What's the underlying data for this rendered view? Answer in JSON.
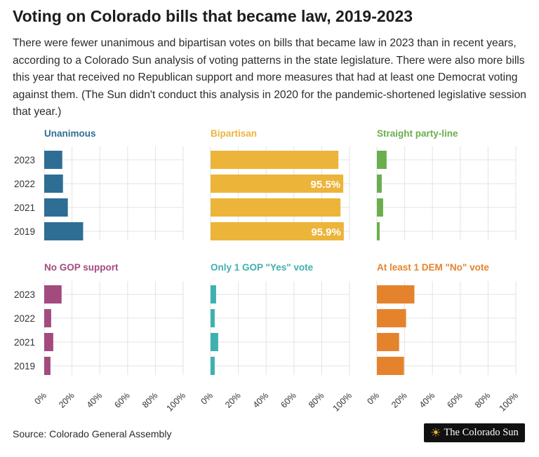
{
  "title": "Voting on Colorado bills that became law, 2019-2023",
  "subtitle": "There were fewer unanimous and bipartisan votes on bills that became law in 2023 than in recent years, according to a Colorado Sun analysis of voting patterns in the state legislature. There were also more bills this year that received no Republican support and more measures that had at least one Democrat voting against them. (The Sun didn't conduct this analysis in 2020 for the pandemic-shortened legislative session that year.)",
  "source": "Source: Colorado General Assembly",
  "logo": {
    "text": "The Colorado Sun",
    "icon": "sun-icon"
  },
  "colors": {
    "unanimous": "#2f6e94",
    "bipartisan": "#edb43a",
    "party_line": "#6aae4e",
    "no_gop": "#a34a7e",
    "one_gop": "#3fb0b0",
    "dem_no": "#e5832d",
    "grid": "#e3e3e3",
    "axis_text": "#333333"
  },
  "chart_data": [
    {
      "type": "bar",
      "orientation": "horizontal",
      "title": "Unanimous",
      "color": "#2f6e94",
      "categories": [
        "2023",
        "2022",
        "2021",
        "2019"
      ],
      "values": [
        13,
        13.5,
        17,
        28
      ],
      "data_labels": [
        "",
        "",
        "",
        ""
      ],
      "xlim": [
        0,
        100
      ],
      "grid": true
    },
    {
      "type": "bar",
      "orientation": "horizontal",
      "title": "Bipartisan",
      "color": "#edb43a",
      "categories": [
        "2023",
        "2022",
        "2021",
        "2019"
      ],
      "values": [
        92,
        95.5,
        93.5,
        95.9
      ],
      "data_labels": [
        "",
        "95.5%",
        "",
        "95.9%"
      ],
      "xlim": [
        0,
        100
      ],
      "grid": true
    },
    {
      "type": "bar",
      "orientation": "horizontal",
      "title": "Straight party-line",
      "color": "#6aae4e",
      "categories": [
        "2023",
        "2022",
        "2021",
        "2019"
      ],
      "values": [
        7,
        3.5,
        4.5,
        2
      ],
      "data_labels": [
        "",
        "",
        "",
        ""
      ],
      "xlim": [
        0,
        100
      ],
      "grid": true
    },
    {
      "type": "bar",
      "orientation": "horizontal",
      "title": "No GOP support",
      "color": "#a34a7e",
      "categories": [
        "2023",
        "2022",
        "2021",
        "2019"
      ],
      "values": [
        12.5,
        5,
        6.5,
        4.5
      ],
      "data_labels": [
        "",
        "",
        "",
        ""
      ],
      "xlim": [
        0,
        100
      ],
      "grid": true
    },
    {
      "type": "bar",
      "orientation": "horizontal",
      "title": "Only 1 GOP \"Yes\" vote",
      "color": "#3fb0b0",
      "categories": [
        "2023",
        "2022",
        "2021",
        "2019"
      ],
      "values": [
        4,
        3,
        5.5,
        3
      ],
      "data_labels": [
        "",
        "",
        "",
        ""
      ],
      "xlim": [
        0,
        100
      ],
      "grid": true
    },
    {
      "type": "bar",
      "orientation": "horizontal",
      "title": "At least 1 DEM \"No\" vote",
      "color": "#e5832d",
      "categories": [
        "2023",
        "2022",
        "2021",
        "2019"
      ],
      "values": [
        27,
        21,
        16,
        19.5
      ],
      "data_labels": [
        "",
        "",
        "",
        ""
      ],
      "xlim": [
        0,
        100
      ],
      "grid": true
    }
  ],
  "x_ticks": [
    "0%",
    "20%",
    "40%",
    "60%",
    "80%",
    "100%"
  ]
}
